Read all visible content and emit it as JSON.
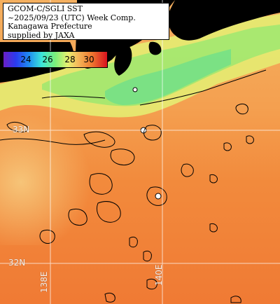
{
  "header": {
    "line1": "GCOM-C/SGLI SST",
    "line2": "~2025/09/23 (UTC) Week Comp.",
    "line3": "Kanagawa Prefecture",
    "line4": "supplied by JAXA"
  },
  "colorbar": {
    "ticks": [
      "24",
      "26",
      "28",
      "30"
    ]
  },
  "grid_labels": {
    "lat_33": "33N",
    "lat_32": "32N",
    "lon_138": "138E",
    "lon_140": "140E"
  },
  "colors": {
    "land": "#000000",
    "sea_warm": "#f28a3c",
    "sea_mid": "#f5a85a",
    "sea_cool": "#8ee66a",
    "graticule": "#ffffff"
  }
}
